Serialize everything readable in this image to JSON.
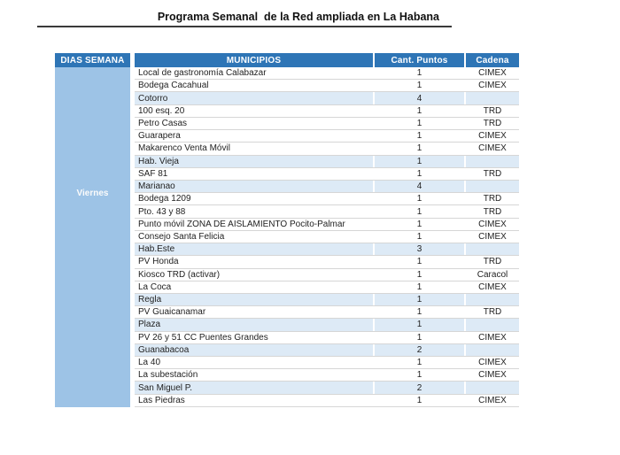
{
  "title": "Programa Semanal  de la Red ampliada en La Habana",
  "table": {
    "headers": [
      "DIAS SEMANA",
      "MUNICIPIOS",
      "Cant. Puntos",
      "Cadena"
    ],
    "day_label": "Viernes",
    "rows": [
      {
        "municipio": "Local de gastronomía Calabazar",
        "cant_puntos": "1",
        "cadena": "CIMEX",
        "highlight": false
      },
      {
        "municipio": "Bodega Cacahual",
        "cant_puntos": "1",
        "cadena": "CIMEX",
        "highlight": false
      },
      {
        "municipio": "Cotorro",
        "cant_puntos": "4",
        "cadena": "",
        "highlight": true
      },
      {
        "municipio": "100 esq. 20",
        "cant_puntos": "1",
        "cadena": "TRD",
        "highlight": false
      },
      {
        "municipio": "Petro Casas",
        "cant_puntos": "1",
        "cadena": "TRD",
        "highlight": false
      },
      {
        "municipio": "Guarapera",
        "cant_puntos": "1",
        "cadena": "CIMEX",
        "highlight": false
      },
      {
        "municipio": "Makarenco Venta Móvil",
        "cant_puntos": "1",
        "cadena": "CIMEX",
        "highlight": false
      },
      {
        "municipio": "Hab. Vieja",
        "cant_puntos": "1",
        "cadena": "",
        "highlight": true
      },
      {
        "municipio": "SAF 81",
        "cant_puntos": "1",
        "cadena": "TRD",
        "highlight": false
      },
      {
        "municipio": "Marianao",
        "cant_puntos": "4",
        "cadena": "",
        "highlight": true
      },
      {
        "municipio": "Bodega 1209",
        "cant_puntos": "1",
        "cadena": "TRD",
        "highlight": false
      },
      {
        "municipio": "Pto. 43 y 88",
        "cant_puntos": "1",
        "cadena": "TRD",
        "highlight": false
      },
      {
        "municipio": "Punto móvil ZONA DE AISLAMIENTO Pocito-Palmar",
        "cant_puntos": "1",
        "cadena": "CIMEX",
        "highlight": false
      },
      {
        "municipio": "Consejo Santa Felicia",
        "cant_puntos": "1",
        "cadena": "CIMEX",
        "highlight": false
      },
      {
        "municipio": "Hab.Este",
        "cant_puntos": "3",
        "cadena": "",
        "highlight": true
      },
      {
        "municipio": "PV Honda",
        "cant_puntos": "1",
        "cadena": "TRD",
        "highlight": false
      },
      {
        "municipio": "Kiosco TRD (activar)",
        "cant_puntos": "1",
        "cadena": "Caracol",
        "highlight": false
      },
      {
        "municipio": "La Coca",
        "cant_puntos": "1",
        "cadena": "CIMEX",
        "highlight": false
      },
      {
        "municipio": "Regla",
        "cant_puntos": "1",
        "cadena": "",
        "highlight": true
      },
      {
        "municipio": "PV Guaicanamar",
        "cant_puntos": "1",
        "cadena": "TRD",
        "highlight": false
      },
      {
        "municipio": "Plaza",
        "cant_puntos": "1",
        "cadena": "",
        "highlight": true
      },
      {
        "municipio": "PV 26 y 51 CC Puentes Grandes",
        "cant_puntos": "1",
        "cadena": "CIMEX",
        "highlight": false
      },
      {
        "municipio": "Guanabacoa",
        "cant_puntos": "2",
        "cadena": "",
        "highlight": true
      },
      {
        "municipio": "La 40",
        "cant_puntos": "1",
        "cadena": "CIMEX",
        "highlight": false
      },
      {
        "municipio": "La subestación",
        "cant_puntos": "1",
        "cadena": "CIMEX",
        "highlight": false
      },
      {
        "municipio": "San Miguel P.",
        "cant_puntos": "2",
        "cadena": "",
        "highlight": true
      },
      {
        "municipio": "Las Piedras",
        "cant_puntos": "1",
        "cadena": "CIMEX",
        "highlight": false
      }
    ]
  },
  "colors": {
    "header_bg": "#2E75B6",
    "day_column_bg": "#9DC3E6",
    "highlight_row_bg": "#DDEAF6",
    "row_border": "#D6D6D6",
    "title_underline": "#3A3A3A"
  }
}
